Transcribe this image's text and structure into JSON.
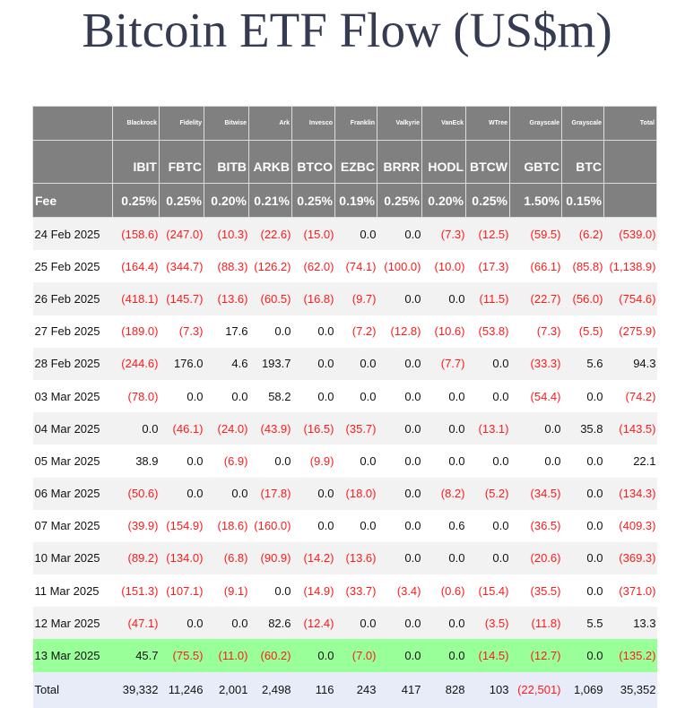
{
  "title": "Bitcoin ETF Flow (US$m)",
  "table": {
    "issuers": [
      "Blackrock",
      "Fidelity",
      "Bitwise",
      "Ark",
      "Invesco",
      "Franklin",
      "Valkyrie",
      "VanEck",
      "WTree",
      "Grayscale",
      "Grayscale"
    ],
    "total_header": "Total",
    "tickers": [
      "IBIT",
      "FBTC",
      "BITB",
      "ARKB",
      "BTCO",
      "EZBC",
      "BRRR",
      "HODL",
      "BTCW",
      "GBTC",
      "BTC"
    ],
    "fee_label": "Fee",
    "fees": [
      "0.25%",
      "0.25%",
      "0.20%",
      "0.21%",
      "0.25%",
      "0.19%",
      "0.25%",
      "0.20%",
      "0.25%",
      "1.50%",
      "0.15%"
    ],
    "rows": [
      {
        "date": "24 Feb 2025",
        "values": [
          "(158.6)",
          "(247.0)",
          "(10.3)",
          "(22.6)",
          "(15.0)",
          "0.0",
          "0.0",
          "(7.3)",
          "(12.5)",
          "(59.5)",
          "(6.2)",
          "(539.0)"
        ]
      },
      {
        "date": "25 Feb 2025",
        "values": [
          "(164.4)",
          "(344.7)",
          "(88.3)",
          "(126.2)",
          "(62.0)",
          "(74.1)",
          "(100.0)",
          "(10.0)",
          "(17.3)",
          "(66.1)",
          "(85.8)",
          "(1,138.9)"
        ]
      },
      {
        "date": "26 Feb 2025",
        "values": [
          "(418.1)",
          "(145.7)",
          "(13.6)",
          "(60.5)",
          "(16.8)",
          "(9.7)",
          "0.0",
          "0.0",
          "(11.5)",
          "(22.7)",
          "(56.0)",
          "(754.6)"
        ]
      },
      {
        "date": "27 Feb 2025",
        "values": [
          "(189.0)",
          "(7.3)",
          "17.6",
          "0.0",
          "0.0",
          "(7.2)",
          "(12.8)",
          "(10.6)",
          "(53.8)",
          "(7.3)",
          "(5.5)",
          "(275.9)"
        ]
      },
      {
        "date": "28 Feb 2025",
        "values": [
          "(244.6)",
          "176.0",
          "4.6",
          "193.7",
          "0.0",
          "0.0",
          "0.0",
          "(7.7)",
          "0.0",
          "(33.3)",
          "5.6",
          "94.3"
        ]
      },
      {
        "date": "03 Mar 2025",
        "values": [
          "(78.0)",
          "0.0",
          "0.0",
          "58.2",
          "0.0",
          "0.0",
          "0.0",
          "0.0",
          "0.0",
          "(54.4)",
          "0.0",
          "(74.2)"
        ]
      },
      {
        "date": "04 Mar 2025",
        "values": [
          "0.0",
          "(46.1)",
          "(24.0)",
          "(43.9)",
          "(16.5)",
          "(35.7)",
          "0.0",
          "0.0",
          "(13.1)",
          "0.0",
          "35.8",
          "(143.5)"
        ]
      },
      {
        "date": "05 Mar 2025",
        "values": [
          "38.9",
          "0.0",
          "(6.9)",
          "0.0",
          "(9.9)",
          "0.0",
          "0.0",
          "0.0",
          "0.0",
          "0.0",
          "0.0",
          "22.1"
        ]
      },
      {
        "date": "06 Mar 2025",
        "values": [
          "(50.6)",
          "0.0",
          "0.0",
          "(17.8)",
          "0.0",
          "(18.0)",
          "0.0",
          "(8.2)",
          "(5.2)",
          "(34.5)",
          "0.0",
          "(134.3)"
        ]
      },
      {
        "date": "07 Mar 2025",
        "values": [
          "(39.9)",
          "(154.9)",
          "(18.6)",
          "(160.0)",
          "0.0",
          "0.0",
          "0.0",
          "0.6",
          "0.0",
          "(36.5)",
          "0.0",
          "(409.3)"
        ]
      },
      {
        "date": "10 Mar 2025",
        "values": [
          "(89.2)",
          "(134.0)",
          "(6.8)",
          "(90.9)",
          "(14.2)",
          "(13.6)",
          "0.0",
          "0.0",
          "0.0",
          "(20.6)",
          "0.0",
          "(369.3)"
        ]
      },
      {
        "date": "11 Mar 2025",
        "values": [
          "(151.3)",
          "(107.1)",
          "(9.1)",
          "0.0",
          "(14.9)",
          "(33.7)",
          "(3.4)",
          "(0.6)",
          "(15.4)",
          "(35.5)",
          "0.0",
          "(371.0)"
        ]
      },
      {
        "date": "12 Mar 2025",
        "values": [
          "(47.1)",
          "0.0",
          "0.0",
          "82.6",
          "(12.4)",
          "0.0",
          "0.0",
          "0.0",
          "(3.5)",
          "(11.8)",
          "5.5",
          "13.3"
        ]
      },
      {
        "date": "13 Mar 2025",
        "highlight": true,
        "values": [
          "45.7",
          "(75.5)",
          "(11.0)",
          "(60.2)",
          "0.0",
          "(7.0)",
          "0.0",
          "0.0",
          "(14.5)",
          "(12.7)",
          "0.0",
          "(135.2)"
        ]
      }
    ],
    "total_row": {
      "label": "Total",
      "values": [
        "39,332",
        "11,246",
        "2,001",
        "2,498",
        "116",
        "243",
        "417",
        "828",
        "103",
        "(22,501)",
        "1,069",
        "35,352"
      ]
    },
    "colors": {
      "header_bg": "#808080",
      "negative": "#ff1a1a",
      "highlight": "#99ff99",
      "total_bg": "#e8ecf8",
      "stripe": "#f2f2f2"
    }
  }
}
